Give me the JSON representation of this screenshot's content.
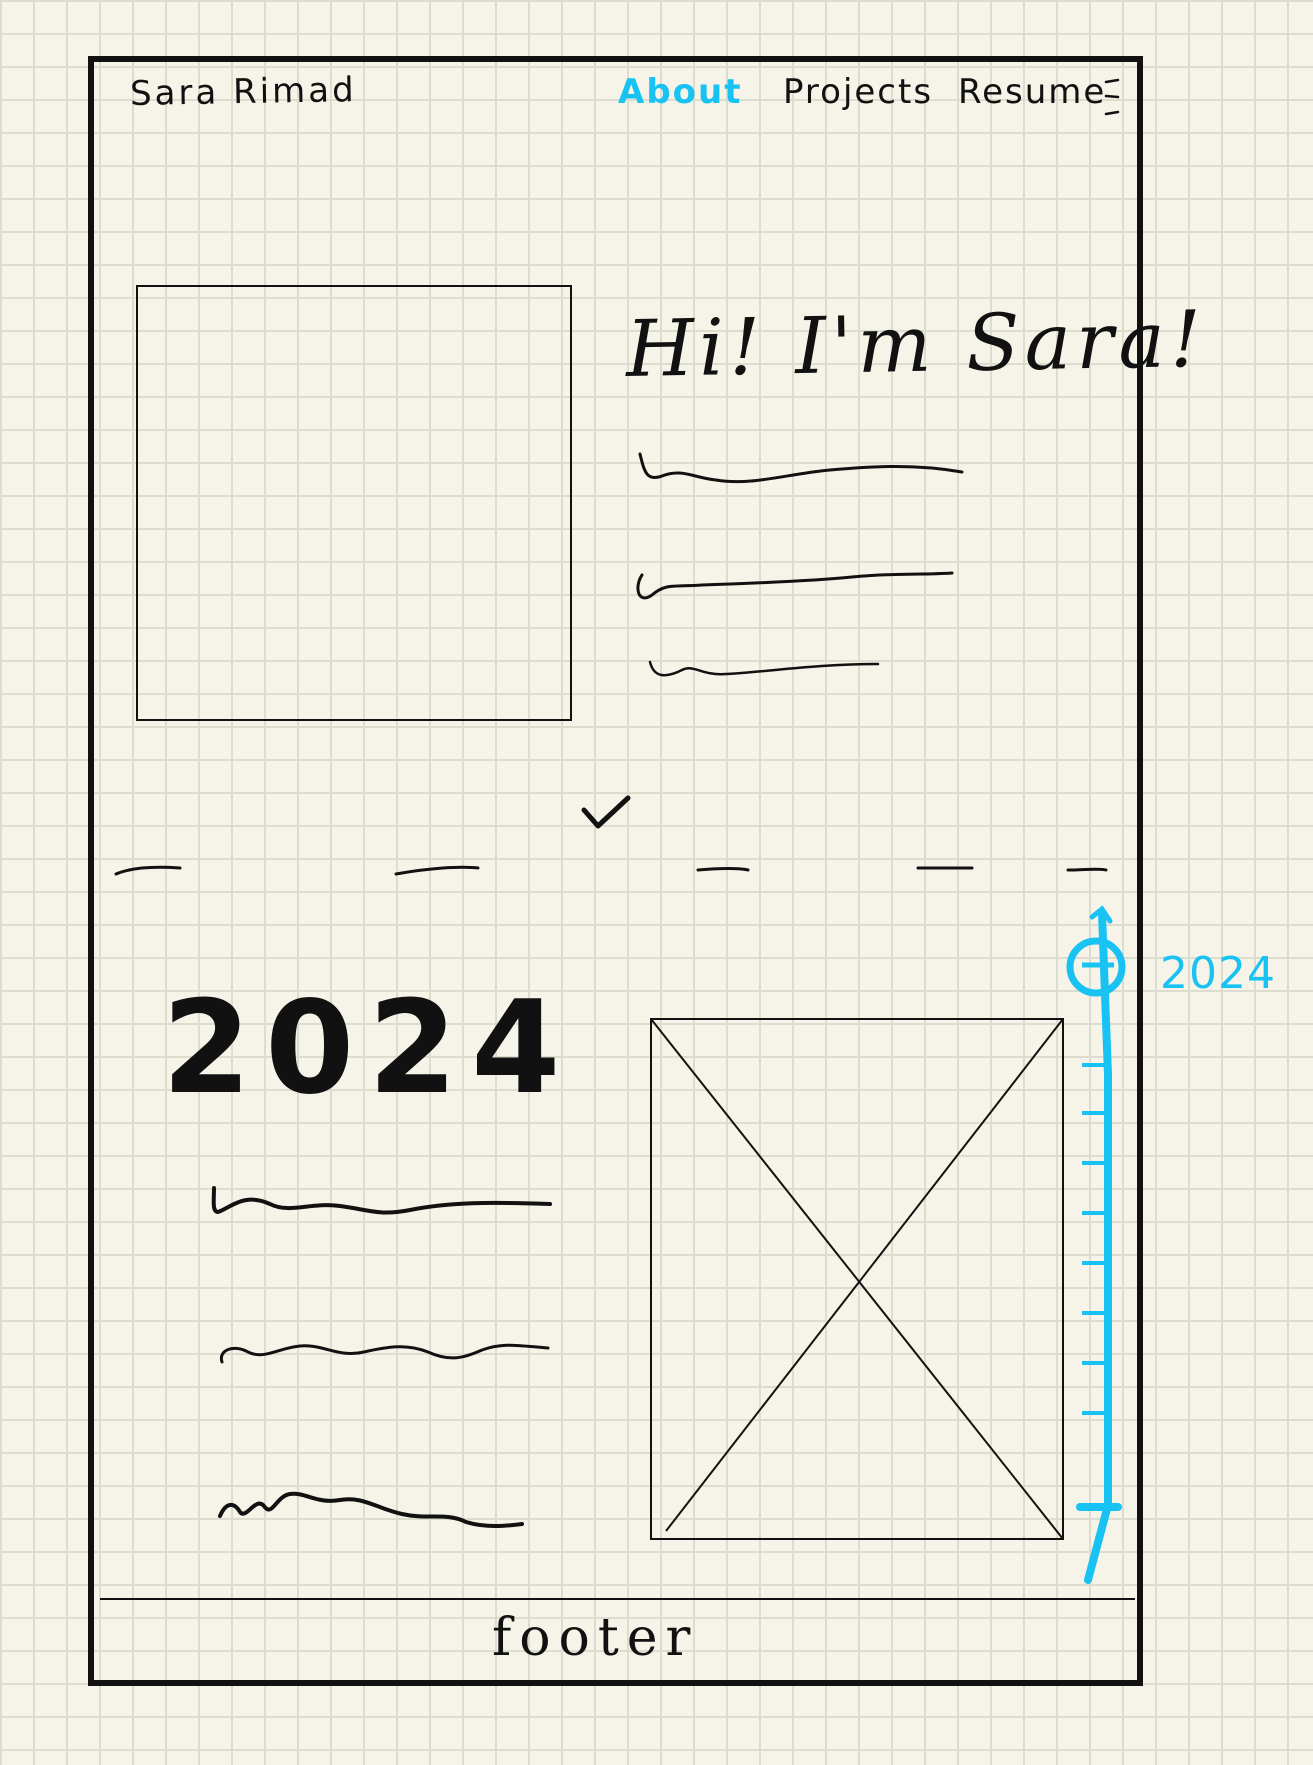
{
  "header": {
    "brand": "Sara Rimad",
    "nav": [
      {
        "label": "About",
        "active": true
      },
      {
        "label": "Projects",
        "active": false
      },
      {
        "label": "Resume",
        "active": false
      }
    ],
    "menu_icon": "hamburger-menu-icon"
  },
  "hero": {
    "greeting": "Hi! I'm Sara!",
    "photo": "profile-photo-placeholder",
    "scroll_icon": "chevron-down-icon"
  },
  "timeline_section": {
    "year_heading": "2024",
    "image": "image-placeholder",
    "timeline_label": "2024"
  },
  "footer": {
    "text": "footer"
  },
  "colors": {
    "accent": "#18c2f2",
    "ink": "#111111",
    "paper": "#f6f4e8"
  }
}
